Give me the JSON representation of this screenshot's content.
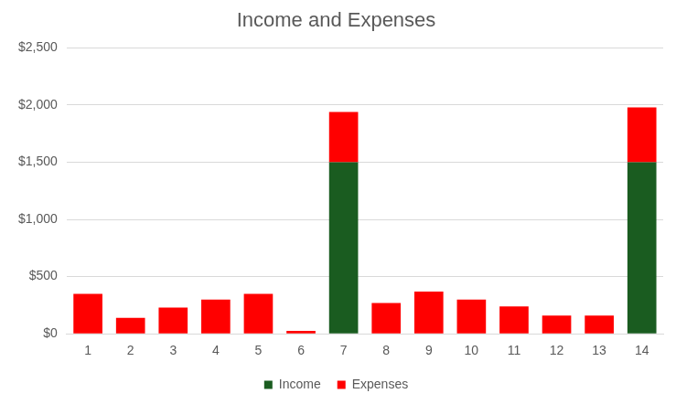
{
  "chart_data": {
    "type": "bar",
    "title": "Income and Expenses",
    "categories": [
      "1",
      "2",
      "3",
      "4",
      "5",
      "6",
      "7",
      "8",
      "9",
      "10",
      "11",
      "12",
      "13",
      "14"
    ],
    "series": [
      {
        "name": "Income",
        "color": "#1a5c20",
        "values": [
          0,
          0,
          0,
          0,
          0,
          0,
          1500,
          0,
          0,
          0,
          0,
          0,
          0,
          1500
        ]
      },
      {
        "name": "Expenses",
        "color": "#ff0000",
        "values": [
          350,
          140,
          230,
          300,
          350,
          25,
          440,
          270,
          370,
          300,
          240,
          160,
          160,
          480
        ]
      }
    ],
    "ylim": [
      0,
      2500
    ],
    "yticks": [
      {
        "value": 0,
        "label": "$0"
      },
      {
        "value": 500,
        "label": "$500"
      },
      {
        "value": 1000,
        "label": "$1,000"
      },
      {
        "value": 1500,
        "label": "$1,500"
      },
      {
        "value": 2000,
        "label": "$2,000"
      },
      {
        "value": 2500,
        "label": "$2,500"
      }
    ],
    "stacked": true,
    "grid": true,
    "legend": "bottom"
  }
}
